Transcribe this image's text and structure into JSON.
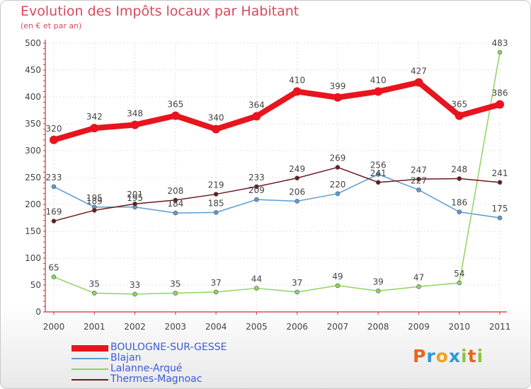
{
  "title": "Evolution des Impôts locaux par Habitant",
  "subtitle": "(en € et par an)",
  "logo": {
    "text": "Proxiti",
    "colors": [
      "#e8641e",
      "#2a9ad8",
      "#f0a020",
      "#2a9ad8",
      "#8cc43c",
      "#e8641e",
      "#8cc43c"
    ]
  },
  "colors": {
    "title": "#d64a5a",
    "axis": "#c8323c",
    "grid": "#e0e0e0",
    "legend_text": "#3b5bd6"
  },
  "chart_data": {
    "type": "line",
    "x": [
      "2000",
      "2001",
      "2002",
      "2003",
      "2004",
      "2005",
      "2006",
      "2007",
      "2008",
      "2009",
      "2010",
      "2011"
    ],
    "yticks": [
      0,
      50,
      100,
      150,
      200,
      250,
      300,
      350,
      400,
      450,
      500
    ],
    "ylim": [
      0,
      500
    ],
    "grid": true,
    "legend_position": "bottom-left",
    "series": [
      {
        "name": "BOULOGNE-SUR-GESSE",
        "color": "#e8141e",
        "width": 8,
        "marker": 6,
        "values": [
          320,
          342,
          348,
          365,
          340,
          364,
          410,
          399,
          410,
          427,
          365,
          386
        ],
        "labels": [
          "320",
          "342",
          "348",
          "365",
          "340",
          "364",
          "410",
          "399",
          "410",
          "427",
          "365",
          "386"
        ]
      },
      {
        "name": "Blajan",
        "color": "#5b9bd0",
        "width": 1.5,
        "marker": 3,
        "values": [
          233,
          195,
          195,
          184,
          185,
          209,
          206,
          220,
          256,
          227,
          186,
          175
        ],
        "labels": [
          "233",
          "195",
          "195",
          "184",
          "185",
          "209",
          "206",
          "220",
          "256",
          "227",
          "186",
          "175"
        ]
      },
      {
        "name": "Lalanne-Arqué",
        "color": "#8fd45e",
        "width": 1.5,
        "marker": 3,
        "values": [
          65,
          35,
          33,
          35,
          37,
          44,
          37,
          49,
          39,
          47,
          54,
          483
        ],
        "labels": [
          "65",
          "35",
          "33",
          "35",
          "37",
          "44",
          "37",
          "49",
          "39",
          "47",
          "54",
          "483"
        ]
      },
      {
        "name": "Thermes-Magnoac",
        "color": "#6b1a1e",
        "width": 1.5,
        "marker": 3,
        "values": [
          169,
          189,
          201,
          208,
          219,
          233,
          249,
          269,
          241,
          247,
          248,
          241
        ],
        "labels": [
          "169",
          "189",
          "201",
          "208",
          "219",
          "233",
          "249",
          "269",
          "241",
          "247",
          "248",
          "241"
        ]
      }
    ]
  }
}
